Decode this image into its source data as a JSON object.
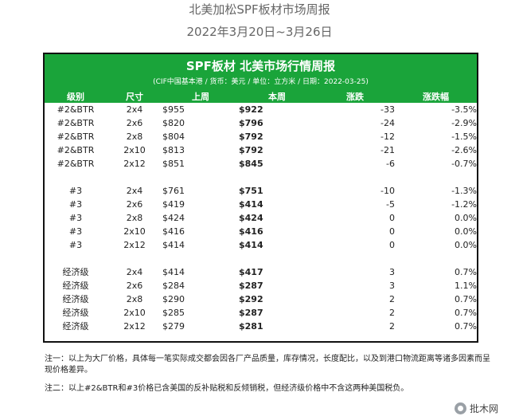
{
  "header": {
    "title": "北美加松SPF板材市场周报",
    "date_range": "2022年3月20日~3月26日"
  },
  "banner": {
    "title": "SPF板材 北美市场行情周报",
    "subtitle": "(CIF中国基本港 / 货币：美元 / 单位：立方米 / 日期：2022-03-25)"
  },
  "table": {
    "columns": [
      "级别",
      "尺寸",
      "上周",
      "本周",
      "涨跌",
      "涨跌幅"
    ],
    "groups": [
      [
        [
          "#2&BTR",
          "2x4",
          "$955",
          "$922",
          "-33",
          "-3.5%"
        ],
        [
          "#2&BTR",
          "2x6",
          "$820",
          "$796",
          "-24",
          "-2.9%"
        ],
        [
          "#2&BTR",
          "2x8",
          "$804",
          "$792",
          "-12",
          "-1.5%"
        ],
        [
          "#2&BTR",
          "2x10",
          "$813",
          "$792",
          "-21",
          "-2.6%"
        ],
        [
          "#2&BTR",
          "2x12",
          "$851",
          "$845",
          "-6",
          "-0.7%"
        ]
      ],
      [
        [
          "#3",
          "2x4",
          "$761",
          "$751",
          "-10",
          "-1.3%"
        ],
        [
          "#3",
          "2x6",
          "$419",
          "$414",
          "-5",
          "-1.2%"
        ],
        [
          "#3",
          "2x8",
          "$424",
          "$424",
          "0",
          "0.0%"
        ],
        [
          "#3",
          "2x10",
          "$416",
          "$416",
          "0",
          "0.0%"
        ],
        [
          "#3",
          "2x12",
          "$414",
          "$414",
          "0",
          "0.0%"
        ]
      ],
      [
        [
          "经济级",
          "2x4",
          "$414",
          "$417",
          "3",
          "0.7%"
        ],
        [
          "经济级",
          "2x6",
          "$284",
          "$287",
          "3",
          "1.1%"
        ],
        [
          "经济级",
          "2x8",
          "$290",
          "$292",
          "2",
          "0.7%"
        ],
        [
          "经济级",
          "2x10",
          "$285",
          "$287",
          "2",
          "0.7%"
        ],
        [
          "经济级",
          "2x12",
          "$279",
          "$281",
          "2",
          "0.7%"
        ]
      ]
    ]
  },
  "notes": [
    "注一：以上为大厂价格，具体每一笔实际成交都会因各厂产品质量，库存情况，长度配比，以及到港口物流距离等诸多因素而呈现价格差异。",
    "注二：以上#2&BTR和#3价格已含美国的反补贴税和反倾销税，但经济级价格中不含这两种美国税负。"
  ],
  "watermark": {
    "icon": "wechat-icon",
    "text": "批木网"
  }
}
